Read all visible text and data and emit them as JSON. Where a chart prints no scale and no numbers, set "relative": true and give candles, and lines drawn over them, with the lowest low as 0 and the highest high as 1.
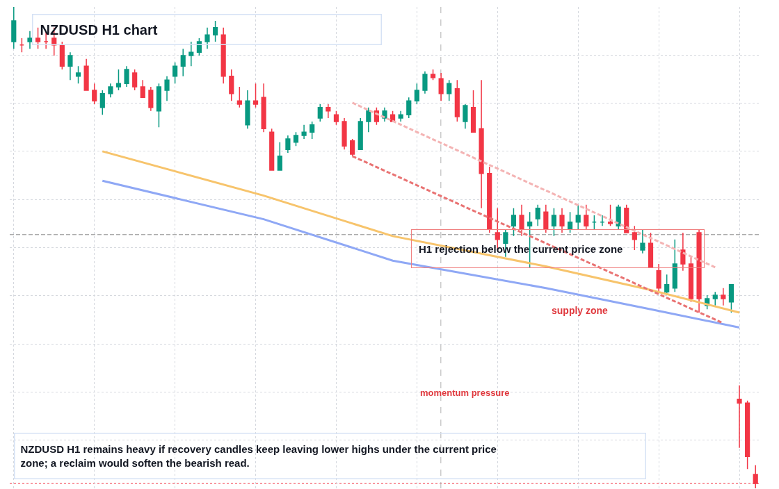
{
  "chart_data": {
    "type": "candlestick",
    "relative": true,
    "title": "NZDUSD H1 chart",
    "grid": true,
    "categories": [
      null,
      null,
      null,
      null,
      null,
      null,
      null,
      null,
      null,
      null,
      null,
      null,
      null,
      null,
      null,
      null,
      null,
      null,
      null,
      null,
      null,
      null,
      null,
      null,
      null,
      null,
      null,
      null,
      null,
      null,
      null,
      null,
      null,
      null,
      null,
      null,
      null,
      null,
      null,
      null,
      null,
      null,
      null,
      null,
      null,
      null,
      null,
      null,
      null,
      null,
      null,
      null,
      null,
      null,
      null,
      null,
      null,
      null,
      null,
      null,
      null,
      null,
      null,
      null,
      null,
      null,
      null,
      null,
      null,
      null,
      null,
      null,
      null,
      null,
      null,
      null,
      null,
      null,
      null,
      null,
      null,
      null,
      null,
      null,
      null,
      null,
      null,
      null,
      null,
      null,
      null,
      null,
      null
    ],
    "ohlc": [
      [
        0.928,
        1.0,
        0.913,
        0.971
      ],
      [
        0.921,
        0.935,
        0.906,
        0.921
      ],
      [
        0.928,
        0.95,
        0.913,
        0.935
      ],
      [
        0.935,
        0.957,
        0.913,
        0.928
      ],
      [
        0.928,
        0.95,
        0.913,
        0.928
      ],
      [
        0.935,
        0.957,
        0.899,
        0.921
      ],
      [
        0.921,
        0.928,
        0.87,
        0.877
      ],
      [
        0.877,
        0.906,
        0.848,
        0.899
      ],
      [
        0.856,
        0.877,
        0.841,
        0.863
      ],
      [
        0.877,
        0.892,
        0.827,
        0.827
      ],
      [
        0.827,
        0.841,
        0.798,
        0.805
      ],
      [
        0.791,
        0.827,
        0.776,
        0.82
      ],
      [
        0.82,
        0.841,
        0.812,
        0.834
      ],
      [
        0.834,
        0.87,
        0.827,
        0.841
      ],
      [
        0.841,
        0.877,
        0.834,
        0.87
      ],
      [
        0.863,
        0.87,
        0.827,
        0.834
      ],
      [
        0.834,
        0.848,
        0.812,
        0.812
      ],
      [
        0.827,
        0.834,
        0.784,
        0.791
      ],
      [
        0.784,
        0.841,
        0.75,
        0.834
      ],
      [
        0.827,
        0.856,
        0.805,
        0.848
      ],
      [
        0.856,
        0.885,
        0.841,
        0.877
      ],
      [
        0.877,
        0.913,
        0.856,
        0.899
      ],
      [
        0.899,
        0.928,
        0.877,
        0.906
      ],
      [
        0.906,
        0.935,
        0.899,
        0.928
      ],
      [
        0.928,
        0.957,
        0.913,
        0.942
      ],
      [
        0.942,
        0.971,
        0.928,
        0.957
      ],
      [
        0.942,
        0.957,
        0.841,
        0.856
      ],
      [
        0.856,
        0.87,
        0.805,
        0.82
      ],
      [
        0.805,
        0.834,
        0.791,
        0.798
      ],
      [
        0.755,
        0.827,
        0.747,
        0.805
      ],
      [
        0.805,
        0.841,
        0.791,
        0.798
      ],
      [
        0.812,
        0.841,
        0.74,
        0.747
      ],
      [
        0.74,
        0.747,
        0.661,
        0.661
      ],
      [
        0.661,
        0.719,
        0.661,
        0.69
      ],
      [
        0.704,
        0.733,
        0.697,
        0.726
      ],
      [
        0.719,
        0.74,
        0.711,
        0.733
      ],
      [
        0.733,
        0.755,
        0.726,
        0.74
      ],
      [
        0.74,
        0.762,
        0.726,
        0.755
      ],
      [
        0.769,
        0.798,
        0.762,
        0.791
      ],
      [
        0.791,
        0.798,
        0.769,
        0.784
      ],
      [
        0.776,
        0.784,
        0.755,
        0.762
      ],
      [
        0.762,
        0.769,
        0.704,
        0.711
      ],
      [
        0.722,
        0.726,
        0.69,
        0.694
      ],
      [
        0.704,
        0.769,
        0.704,
        0.762
      ],
      [
        0.762,
        0.791,
        0.74,
        0.784
      ],
      [
        0.784,
        0.791,
        0.755,
        0.762
      ],
      [
        0.769,
        0.791,
        0.762,
        0.784
      ],
      [
        0.776,
        0.784,
        0.762,
        0.762
      ],
      [
        0.769,
        0.784,
        0.762,
        0.776
      ],
      [
        0.776,
        0.812,
        0.769,
        0.805
      ],
      [
        0.805,
        0.841,
        0.798,
        0.827
      ],
      [
        0.827,
        0.866,
        0.82,
        0.86
      ],
      [
        0.86,
        0.87,
        0.848,
        0.853
      ],
      [
        0.851,
        0.863,
        0.805,
        0.82
      ],
      [
        0.82,
        0.848,
        0.805,
        0.841
      ],
      [
        0.83,
        0.848,
        0.762,
        0.772
      ],
      [
        0.762,
        0.798,
        0.747,
        0.795
      ],
      [
        0.791,
        0.827,
        0.74,
        0.74
      ],
      [
        0.747,
        0.848,
        0.582,
        0.654
      ],
      [
        0.654,
        0.668,
        0.531,
        0.538
      ],
      [
        0.531,
        0.582,
        0.495,
        0.517
      ],
      [
        0.509,
        0.538,
        0.481,
        0.531
      ],
      [
        0.545,
        0.582,
        0.524,
        0.567
      ],
      [
        0.567,
        0.589,
        0.524,
        0.538
      ],
      [
        0.545,
        0.574,
        0.459,
        0.553
      ],
      [
        0.56,
        0.589,
        0.545,
        0.582
      ],
      [
        0.574,
        0.589,
        0.531,
        0.538
      ],
      [
        0.545,
        0.582,
        0.524,
        0.567
      ],
      [
        0.567,
        0.582,
        0.531,
        0.545
      ],
      [
        0.538,
        0.574,
        0.531,
        0.553
      ],
      [
        0.553,
        0.589,
        0.538,
        0.567
      ],
      [
        0.567,
        0.589,
        0.538,
        0.545
      ],
      [
        0.553,
        0.567,
        0.538,
        0.553
      ],
      [
        0.553,
        0.567,
        0.545,
        0.553
      ],
      [
        0.553,
        0.589,
        0.545,
        0.55
      ],
      [
        0.545,
        0.589,
        0.538,
        0.584
      ],
      [
        0.582,
        0.589,
        0.531,
        0.531
      ],
      [
        0.531,
        0.545,
        0.495,
        0.517
      ],
      [
        0.495,
        0.538,
        0.488,
        0.509
      ],
      [
        0.509,
        0.531,
        0.459,
        0.459
      ],
      [
        0.452,
        0.466,
        0.408,
        0.416
      ],
      [
        0.408,
        0.444,
        0.401,
        0.423
      ],
      [
        0.416,
        0.517,
        0.408,
        0.466
      ],
      [
        0.495,
        0.531,
        0.452,
        0.466
      ],
      [
        0.466,
        0.481,
        0.387,
        0.394
      ],
      [
        0.531,
        0.538,
        0.365,
        0.394
      ],
      [
        0.38,
        0.401,
        0.372,
        0.394
      ],
      [
        0.394,
        0.408,
        0.38,
        0.401
      ],
      [
        0.401,
        0.416,
        0.38,
        0.394
      ],
      [
        0.387,
        0.423,
        0.365,
        0.423
      ],
      [
        0.185,
        0.214,
        0.084,
        0.177
      ],
      [
        0.177,
        0.182,
        0.04,
        0.066
      ],
      [
        0.029,
        0.048,
        0.0,
        0.01
      ]
    ],
    "series": [
      {
        "type": "line",
        "color": "#f7c46c",
        "values": [
          null,
          null,
          null,
          null,
          null,
          null,
          null,
          null,
          null,
          null,
          null,
          0.7,
          null,
          null,
          null,
          null,
          null,
          null,
          null,
          null,
          null,
          null,
          null,
          null,
          null,
          null,
          null,
          null,
          null,
          null,
          null,
          0.608,
          null,
          null,
          null,
          null,
          null,
          null,
          null,
          null,
          null,
          null,
          null,
          null,
          null,
          null,
          null,
          0.524,
          null,
          null,
          null,
          null,
          null,
          null,
          null,
          null,
          null,
          null,
          null,
          null,
          null,
          null,
          null,
          null,
          null,
          null,
          0.461,
          null,
          null,
          null,
          null,
          null,
          null,
          null,
          null,
          null,
          null,
          null,
          null,
          0.412,
          null,
          null,
          null,
          null,
          null,
          null,
          null,
          null,
          null,
          null,
          0.365,
          null,
          null
        ]
      },
      {
        "type": "line",
        "color": "#8fa8f5",
        "values": [
          null,
          null,
          null,
          null,
          null,
          null,
          null,
          null,
          null,
          null,
          null,
          0.639,
          null,
          null,
          null,
          null,
          null,
          null,
          null,
          null,
          null,
          null,
          null,
          null,
          null,
          null,
          null,
          null,
          null,
          null,
          null,
          0.559,
          null,
          null,
          null,
          null,
          null,
          null,
          null,
          null,
          null,
          null,
          null,
          null,
          null,
          null,
          null,
          0.473,
          null,
          null,
          null,
          null,
          null,
          null,
          null,
          null,
          null,
          null,
          null,
          null,
          null,
          null,
          null,
          null,
          null,
          null,
          0.416,
          null,
          null,
          null,
          null,
          null,
          null,
          null,
          null,
          null,
          null,
          null,
          null,
          0.372,
          null,
          null,
          null,
          null,
          null,
          null,
          null,
          null,
          null,
          null,
          0.334,
          null,
          null
        ]
      },
      {
        "type": "line",
        "color": "#e97373",
        "line_style": "dashed",
        "values": [
          null,
          null,
          null,
          null,
          null,
          null,
          null,
          null,
          null,
          null,
          null,
          null,
          null,
          null,
          null,
          null,
          null,
          null,
          null,
          null,
          null,
          null,
          null,
          null,
          null,
          null,
          null,
          null,
          null,
          null,
          null,
          null,
          null,
          null,
          null,
          null,
          null,
          null,
          null,
          null,
          null,
          null,
          0.69,
          null,
          null,
          null,
          null,
          null,
          null,
          null,
          null,
          null,
          null,
          null,
          null,
          null,
          null,
          null,
          null,
          null,
          null,
          null,
          null,
          null,
          null,
          null,
          null,
          null,
          null,
          null,
          null,
          null,
          null,
          null,
          null,
          null,
          null,
          null,
          null,
          null,
          null,
          null,
          null,
          null,
          null,
          null,
          null,
          null,
          0.343,
          null,
          null,
          null,
          null
        ]
      },
      {
        "type": "line",
        "color": "#f4b4b4",
        "line_style": "dashed",
        "values": [
          null,
          null,
          null,
          null,
          null,
          null,
          null,
          null,
          null,
          null,
          null,
          null,
          null,
          null,
          null,
          null,
          null,
          null,
          null,
          null,
          null,
          null,
          null,
          null,
          null,
          null,
          null,
          null,
          null,
          null,
          null,
          null,
          null,
          null,
          null,
          null,
          null,
          null,
          null,
          null,
          null,
          null,
          0.801,
          null,
          null,
          null,
          null,
          null,
          null,
          null,
          null,
          null,
          null,
          null,
          null,
          null,
          null,
          null,
          null,
          null,
          null,
          null,
          null,
          null,
          null,
          null,
          null,
          null,
          null,
          null,
          null,
          null,
          null,
          null,
          null,
          null,
          null,
          null,
          null,
          null,
          null,
          null,
          null,
          null,
          null,
          null,
          null,
          0.459,
          null,
          null,
          null,
          null,
          null
        ]
      }
    ],
    "ref_lines": [
      {
        "axis": "y",
        "value": 0.527,
        "color": "#8a8a8a",
        "line_style": "dashed"
      },
      {
        "axis": "y",
        "value": 0.01,
        "color": "#f23645",
        "line_style": "dotted"
      }
    ],
    "annotations": [
      "H1 rejection below the current price zone",
      "supply zone",
      "momentum pressure",
      "NZDUSD H1 remains heavy if recovery candles keep leaving lower highs under the current price zone; a reclaim would soften the bearish read."
    ]
  }
}
